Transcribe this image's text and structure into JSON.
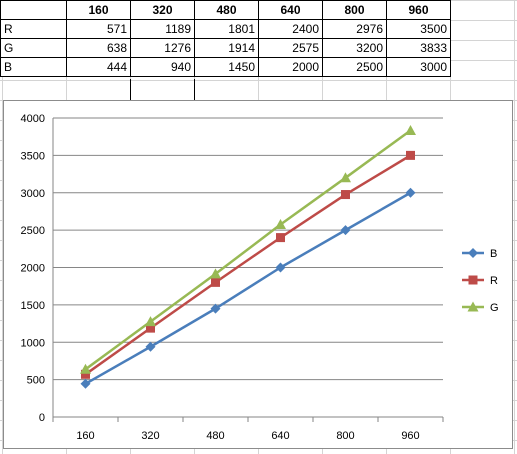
{
  "table": {
    "headers": [
      "160",
      "320",
      "480",
      "640",
      "800",
      "960"
    ],
    "rows": [
      {
        "label": "R",
        "values": [
          "571",
          "1189",
          "1801",
          "2400",
          "2976",
          "3500"
        ]
      },
      {
        "label": "G",
        "values": [
          "638",
          "1276",
          "1914",
          "2575",
          "3200",
          "3833"
        ]
      },
      {
        "label": "B",
        "values": [
          "444",
          "940",
          "1450",
          "2000",
          "2500",
          "3000"
        ]
      }
    ]
  },
  "chart_data": {
    "type": "line",
    "categories": [
      "160",
      "320",
      "480",
      "640",
      "800",
      "960"
    ],
    "series": [
      {
        "name": "B",
        "values": [
          444,
          940,
          1450,
          2000,
          2500,
          3000
        ],
        "color": "#4a7ebb",
        "marker": "diamond"
      },
      {
        "name": "R",
        "values": [
          571,
          1189,
          1801,
          2400,
          2976,
          3500
        ],
        "color": "#be4b48",
        "marker": "square"
      },
      {
        "name": "G",
        "values": [
          638,
          1276,
          1914,
          2575,
          3200,
          3833
        ],
        "color": "#98b954",
        "marker": "triangle"
      }
    ],
    "ylim": [
      0,
      4000
    ],
    "yticks": [
      0,
      500,
      1000,
      1500,
      2000,
      2500,
      3000,
      3500,
      4000
    ],
    "grid": true,
    "legend_position": "right"
  }
}
